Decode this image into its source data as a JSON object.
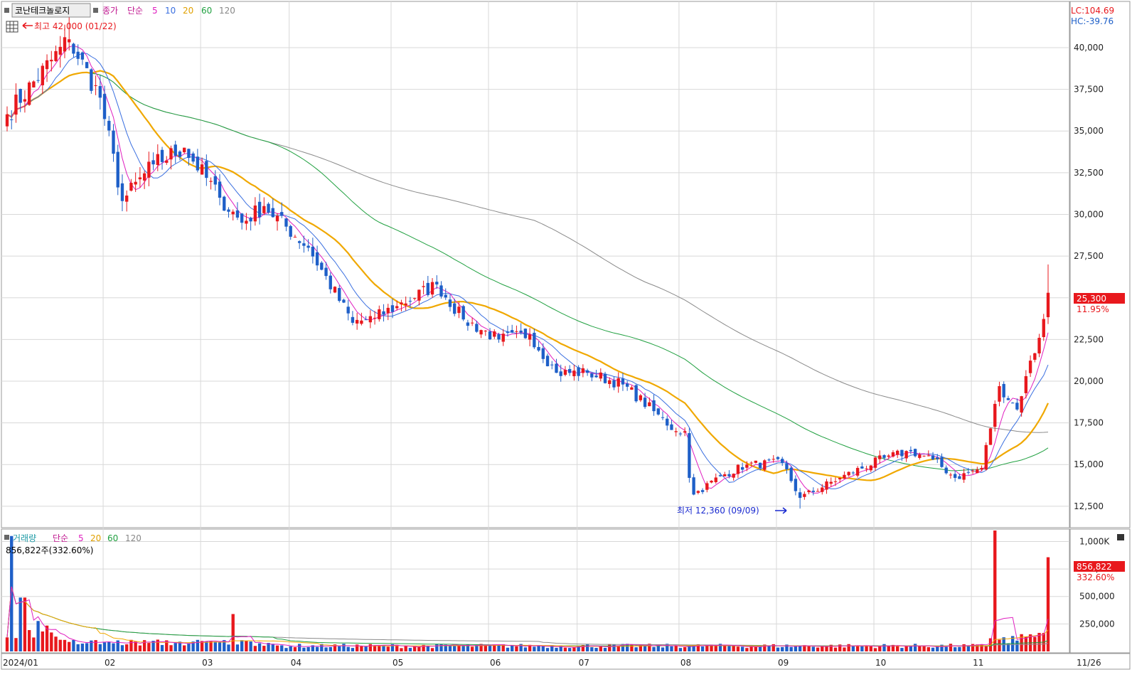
{
  "header": {
    "stock_name": "코난테크놀로지",
    "price_label": "종가",
    "ma_type": "단순",
    "ma_periods": [
      "5",
      "10",
      "20",
      "60",
      "120"
    ],
    "high_marker": "최고 42,000 (01/22)",
    "low_marker": "최저 12,360 (09/09)",
    "lc": "LC:104.69",
    "hc": "HC:-39.76",
    "last_price": "25,300",
    "last_change": "11.95%"
  },
  "volume_panel": {
    "title": "거래량",
    "ma_type": "단순",
    "ma_periods": [
      "5",
      "20",
      "60",
      "120"
    ],
    "current": "856,822주(332.60%)",
    "last_volume": "856,822",
    "last_ratio": "332.60%"
  },
  "colors": {
    "up": "#e8181d",
    "down": "#1e5fc8",
    "ma5": "#e020c0",
    "ma10": "#3a6fe0",
    "ma20": "#f0a800",
    "ma60": "#20a040",
    "ma120": "#8a8a8a",
    "grid": "#d8d8d8"
  },
  "chart_data": [
    {
      "type": "candlestick",
      "x_axis": {
        "labels": [
          "2024/01",
          "02",
          "03",
          "04",
          "05",
          "06",
          "07",
          "08",
          "09",
          "10",
          "11",
          "11/26"
        ]
      },
      "y_axis": {
        "ticks": [
          12500,
          15000,
          17500,
          20000,
          22500,
          25000,
          27500,
          30000,
          32500,
          35000,
          37500,
          40000
        ],
        "tick_labels": [
          "12,500",
          "15,000",
          "17,500",
          "20,000",
          "22,500",
          "25,000",
          "27,500",
          "30,000",
          "32,500",
          "35,000",
          "37,500",
          "40,000"
        ],
        "ylim": [
          11300,
          42600
        ]
      },
      "anchors": [
        {
          "t": "01/02",
          "close": 36000
        },
        {
          "t": "01/22",
          "close": 40500,
          "high": 42000
        },
        {
          "t": "01/31",
          "close": 37000
        },
        {
          "t": "02/07",
          "close": 30800
        },
        {
          "t": "02/16",
          "close": 33000
        },
        {
          "t": "02/27",
          "close": 34000
        },
        {
          "t": "03/08",
          "close": 31000
        },
        {
          "t": "03/15",
          "close": 29500
        },
        {
          "t": "03/22",
          "close": 30500
        },
        {
          "t": "04/05",
          "close": 28000
        },
        {
          "t": "04/19",
          "close": 23500
        },
        {
          "t": "04/26",
          "close": 23800
        },
        {
          "t": "05/03",
          "close": 24500
        },
        {
          "t": "05/16",
          "close": 25800
        },
        {
          "t": "05/24",
          "close": 23700
        },
        {
          "t": "06/05",
          "close": 22500
        },
        {
          "t": "06/14",
          "close": 22800
        },
        {
          "t": "06/24",
          "close": 20500
        },
        {
          "t": "07/03",
          "close": 20500
        },
        {
          "t": "07/15",
          "close": 19800
        },
        {
          "t": "07/24",
          "close": 18200
        },
        {
          "t": "07/31",
          "close": 17000
        },
        {
          "t": "08/02",
          "close": 17000
        },
        {
          "t": "08/05",
          "close": 14200
        },
        {
          "t": "08/06",
          "close": 13200
        },
        {
          "t": "08/14",
          "close": 14300
        },
        {
          "t": "08/22",
          "close": 15000
        },
        {
          "t": "09/03",
          "close": 15100
        },
        {
          "t": "09/09",
          "close": 13000,
          "low": 12360
        },
        {
          "t": "09/20",
          "close": 14200
        },
        {
          "t": "10/04",
          "close": 15400
        },
        {
          "t": "10/14",
          "close": 15800
        },
        {
          "t": "10/21",
          "close": 15300
        },
        {
          "t": "10/28",
          "close": 14200
        },
        {
          "t": "11/05",
          "close": 14800
        },
        {
          "t": "11/11",
          "close": 19700
        },
        {
          "t": "11/15",
          "close": 18300
        },
        {
          "t": "11/19",
          "close": 20300
        },
        {
          "t": "11/22",
          "close": 22600
        },
        {
          "t": "11/26",
          "close": 25300,
          "high": 27000
        }
      ],
      "moving_averages": [
        "MA5",
        "MA10",
        "MA20",
        "MA60",
        "MA120"
      ]
    },
    {
      "type": "bar",
      "series": [
        {
          "name": "거래량"
        }
      ],
      "y_axis": {
        "ticks": [
          250000,
          500000,
          750000,
          1000000
        ],
        "tick_labels": [
          "250,000",
          "500,000",
          "750,000",
          "1,000K"
        ],
        "ylim": [
          0,
          1100000
        ]
      },
      "spikes": [
        {
          "t": "01/03",
          "value": 1050000
        },
        {
          "t": "01/05",
          "value": 490000
        },
        {
          "t": "01/08",
          "value": 490000
        },
        {
          "t": "03/13",
          "value": 340000
        },
        {
          "t": "11/08",
          "value": 1100000
        },
        {
          "t": "11/26",
          "value": 856822
        }
      ],
      "moving_averages": [
        "MA5",
        "MA20",
        "MA60",
        "MA120"
      ]
    }
  ]
}
